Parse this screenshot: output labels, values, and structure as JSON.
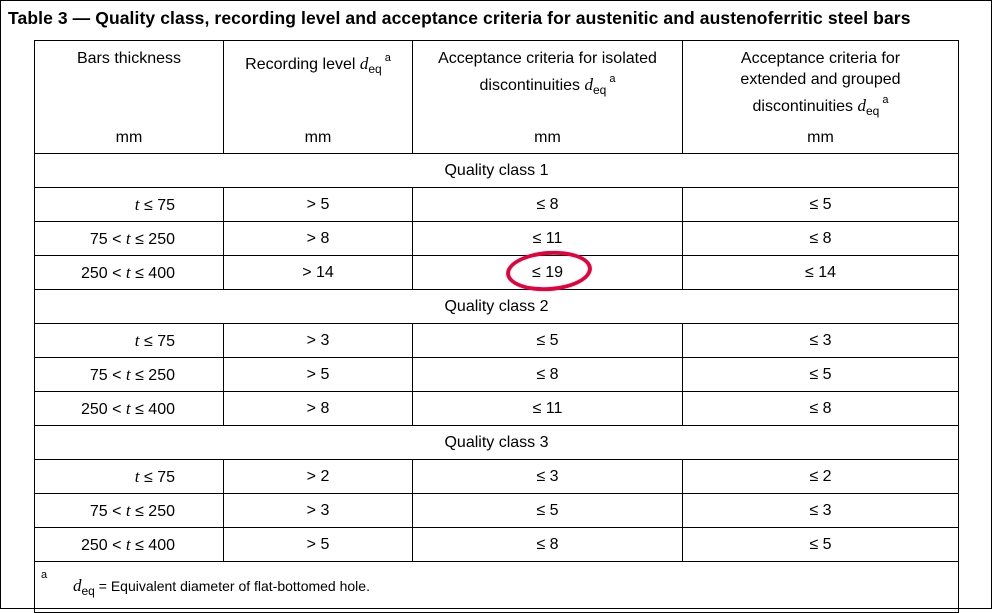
{
  "caption": "Table 3 — Quality class, recording level and acceptance criteria for austenitic and austenoferritic steel bars",
  "headers": {
    "col1": "Bars thickness",
    "col2": "Recording level ",
    "col3": "Acceptance criteria for isolated discontinuities ",
    "col4_line1": "Acceptance criteria for",
    "col4_line2": "extended and grouped",
    "col4_line3": "discontinuities ",
    "d": "d",
    "eq": "eq",
    "a": "a",
    "unit": "mm"
  },
  "classes": [
    {
      "title": "Quality class 1",
      "rows": [
        {
          "pre": "",
          "t": "t",
          "post": " ≤ 75",
          "rec": "> 5",
          "iso": "≤ 8",
          "ext": "≤ 5"
        },
        {
          "pre": "75 < ",
          "t": "t",
          "post": " ≤ 250",
          "rec": "> 8",
          "iso": "≤ 11",
          "ext": "≤ 8"
        },
        {
          "pre": "250 < ",
          "t": "t",
          "post": " ≤ 400",
          "rec": "> 14",
          "iso": "≤ 19",
          "ext": "≤ 14"
        }
      ]
    },
    {
      "title": "Quality class 2",
      "rows": [
        {
          "pre": "",
          "t": "t",
          "post": " ≤ 75",
          "rec": "> 3",
          "iso": "≤ 5",
          "ext": "≤ 3"
        },
        {
          "pre": "75 < ",
          "t": "t",
          "post": " ≤ 250",
          "rec": "> 5",
          "iso": "≤ 8",
          "ext": "≤ 5"
        },
        {
          "pre": "250 < ",
          "t": "t",
          "post": " ≤ 400",
          "rec": "> 8",
          "iso": "≤ 11",
          "ext": "≤ 8"
        }
      ]
    },
    {
      "title": "Quality class 3",
      "rows": [
        {
          "pre": "",
          "t": "t",
          "post": " ≤ 75",
          "rec": "> 2",
          "iso": "≤ 3",
          "ext": "≤ 2"
        },
        {
          "pre": "75 < ",
          "t": "t",
          "post": " ≤ 250",
          "rec": "> 3",
          "iso": "≤ 5",
          "ext": "≤ 3"
        },
        {
          "pre": "250 < ",
          "t": "t",
          "post": " ≤ 400",
          "rec": "> 5",
          "iso": "≤ 8",
          "ext": "≤ 5"
        }
      ]
    }
  ],
  "footnote": {
    "mark": "a",
    "d": "d",
    "eq": "eq",
    "text": " = Equivalent diameter of flat-bottomed hole."
  },
  "colors": {
    "highlight_circle": "#e8003d"
  }
}
